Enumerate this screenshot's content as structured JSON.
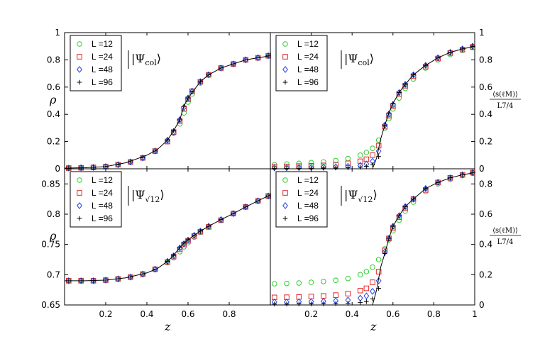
{
  "figure": {
    "x_label": "z",
    "left_y_label": "ρ",
    "right_y_label_numerator": "⟨s(ℓ_M)⟩",
    "right_y_label_denominator": "L^{7/4}",
    "right_y_label_num_display": "⟨s(ℓM)⟩",
    "right_y_label_den_display": "L7/4",
    "legend": [
      "L =12",
      "L =24",
      "L =48",
      "L =96"
    ],
    "marker_shapes": [
      "circle",
      "square",
      "diamond",
      "plus"
    ],
    "colors": {
      "L12": "#2fcc2f",
      "L24": "#e0282b",
      "L48": "#2844e6",
      "L96": "#000000",
      "theory": "#000000"
    }
  },
  "chart_data": [
    {
      "panel": "top-left",
      "type": "scatter",
      "state_label": "|Ψ_col⟩",
      "state_main": "|Ψ",
      "state_sub": "col",
      "state_close": "⟩",
      "xlabel": "",
      "ylabel": "ρ",
      "xlim": [
        0,
        1
      ],
      "ylim": [
        0,
        1
      ],
      "xticks": [],
      "yticks": [
        "0",
        "0.2",
        "0.4",
        "0.6",
        "0.8",
        "1"
      ],
      "series": [
        {
          "name": "L =12",
          "x": [
            0.02,
            0.08,
            0.14,
            0.2,
            0.26,
            0.32,
            0.38,
            0.44,
            0.5,
            0.53,
            0.56,
            0.58,
            0.6,
            0.62,
            0.66,
            0.7,
            0.76,
            0.82,
            0.88,
            0.94,
            0.99
          ],
          "y": [
            0.005,
            0.007,
            0.01,
            0.016,
            0.03,
            0.05,
            0.08,
            0.13,
            0.2,
            0.26,
            0.33,
            0.41,
            0.49,
            0.55,
            0.63,
            0.69,
            0.74,
            0.77,
            0.8,
            0.815,
            0.83
          ]
        },
        {
          "name": "L =24",
          "x": [
            0.02,
            0.08,
            0.14,
            0.2,
            0.26,
            0.32,
            0.38,
            0.44,
            0.5,
            0.53,
            0.56,
            0.58,
            0.6,
            0.62,
            0.66,
            0.7,
            0.76,
            0.82,
            0.88,
            0.94,
            0.99
          ],
          "y": [
            0.005,
            0.007,
            0.01,
            0.016,
            0.03,
            0.05,
            0.08,
            0.13,
            0.2,
            0.27,
            0.35,
            0.44,
            0.51,
            0.57,
            0.64,
            0.69,
            0.74,
            0.77,
            0.8,
            0.815,
            0.83
          ]
        },
        {
          "name": "L =48",
          "x": [
            0.02,
            0.08,
            0.14,
            0.2,
            0.26,
            0.32,
            0.38,
            0.44,
            0.5,
            0.53,
            0.56,
            0.58,
            0.6,
            0.62,
            0.66,
            0.7,
            0.76,
            0.82,
            0.88,
            0.94,
            0.99
          ],
          "y": [
            0.005,
            0.007,
            0.01,
            0.016,
            0.03,
            0.05,
            0.08,
            0.13,
            0.21,
            0.27,
            0.36,
            0.45,
            0.52,
            0.57,
            0.64,
            0.69,
            0.74,
            0.77,
            0.8,
            0.815,
            0.83
          ]
        },
        {
          "name": "L =96",
          "x": [
            0.02,
            0.08,
            0.14,
            0.2,
            0.26,
            0.32,
            0.38,
            0.44,
            0.5,
            0.53,
            0.56,
            0.58,
            0.6,
            0.62,
            0.66,
            0.7,
            0.76,
            0.82,
            0.88,
            0.94,
            0.99
          ],
          "y": [
            0.005,
            0.007,
            0.01,
            0.016,
            0.03,
            0.05,
            0.08,
            0.13,
            0.21,
            0.28,
            0.36,
            0.46,
            0.52,
            0.57,
            0.64,
            0.69,
            0.74,
            0.77,
            0.8,
            0.815,
            0.83
          ]
        }
      ],
      "theory": {
        "x": [
          0,
          0.1,
          0.2,
          0.3,
          0.4,
          0.45,
          0.5,
          0.53,
          0.56,
          0.58,
          0.6,
          0.63,
          0.66,
          0.7,
          0.76,
          0.82,
          0.88,
          0.94,
          1.0
        ],
        "y": [
          0.005,
          0.008,
          0.016,
          0.045,
          0.1,
          0.14,
          0.21,
          0.28,
          0.36,
          0.46,
          0.52,
          0.58,
          0.64,
          0.69,
          0.74,
          0.77,
          0.8,
          0.815,
          0.83
        ]
      }
    },
    {
      "panel": "top-right",
      "type": "scatter",
      "state_label": "|Ψ_col⟩",
      "state_main": "|Ψ",
      "state_sub": "col",
      "state_close": "⟩",
      "xlabel": "",
      "ylabel": "⟨s(ℓ_M)⟩ / L^{7/4}",
      "xlim": [
        0,
        1
      ],
      "ylim": [
        0,
        1
      ],
      "xticks": [],
      "yticks": [
        "0",
        "0.2",
        "0.4",
        "0.6",
        "0.8",
        "1"
      ],
      "series": [
        {
          "name": "L =12",
          "x": [
            0.02,
            0.08,
            0.14,
            0.2,
            0.26,
            0.32,
            0.38,
            0.44,
            0.47,
            0.5,
            0.53,
            0.56,
            0.58,
            0.6,
            0.63,
            0.66,
            0.7,
            0.76,
            0.82,
            0.88,
            0.94,
            0.99
          ],
          "y": [
            0.03,
            0.035,
            0.04,
            0.045,
            0.05,
            0.06,
            0.075,
            0.1,
            0.12,
            0.15,
            0.21,
            0.3,
            0.37,
            0.44,
            0.52,
            0.59,
            0.66,
            0.74,
            0.8,
            0.84,
            0.87,
            0.89
          ]
        },
        {
          "name": "L =24",
          "x": [
            0.02,
            0.08,
            0.14,
            0.2,
            0.26,
            0.32,
            0.38,
            0.44,
            0.47,
            0.5,
            0.53,
            0.56,
            0.58,
            0.6,
            0.63,
            0.66,
            0.7,
            0.76,
            0.82,
            0.88,
            0.94,
            0.99
          ],
          "y": [
            0.015,
            0.017,
            0.02,
            0.022,
            0.025,
            0.03,
            0.04,
            0.055,
            0.07,
            0.1,
            0.17,
            0.31,
            0.39,
            0.46,
            0.55,
            0.61,
            0.68,
            0.75,
            0.81,
            0.85,
            0.875,
            0.895
          ]
        },
        {
          "name": "L =48",
          "x": [
            0.02,
            0.08,
            0.14,
            0.2,
            0.26,
            0.32,
            0.38,
            0.44,
            0.47,
            0.5,
            0.53,
            0.56,
            0.58,
            0.6,
            0.63,
            0.66,
            0.7,
            0.76,
            0.82,
            0.88,
            0.94,
            0.99
          ],
          "y": [
            0.007,
            0.008,
            0.009,
            0.01,
            0.012,
            0.014,
            0.018,
            0.025,
            0.035,
            0.055,
            0.13,
            0.32,
            0.4,
            0.47,
            0.56,
            0.62,
            0.69,
            0.76,
            0.815,
            0.855,
            0.88,
            0.9
          ]
        },
        {
          "name": "L =96",
          "x": [
            0.02,
            0.08,
            0.14,
            0.2,
            0.26,
            0.32,
            0.38,
            0.44,
            0.47,
            0.5,
            0.53,
            0.56,
            0.58,
            0.6,
            0.63,
            0.66,
            0.7,
            0.76,
            0.82,
            0.88,
            0.94,
            0.99
          ],
          "y": [
            0.003,
            0.003,
            0.004,
            0.004,
            0.005,
            0.006,
            0.008,
            0.012,
            0.018,
            0.03,
            0.09,
            0.32,
            0.41,
            0.48,
            0.56,
            0.62,
            0.69,
            0.76,
            0.815,
            0.855,
            0.88,
            0.9
          ]
        }
      ],
      "theory": {
        "x": [
          0.5,
          0.52,
          0.54,
          0.56,
          0.58,
          0.6,
          0.63,
          0.66,
          0.7,
          0.76,
          0.82,
          0.88,
          0.94,
          1.0
        ],
        "y": [
          0.0,
          0.08,
          0.22,
          0.32,
          0.41,
          0.48,
          0.56,
          0.62,
          0.69,
          0.76,
          0.815,
          0.855,
          0.88,
          0.9
        ]
      }
    },
    {
      "panel": "bottom-left",
      "type": "scatter",
      "state_label": "|Ψ_√12⟩",
      "state_main": "|Ψ",
      "state_sub": "√12",
      "state_close": "⟩",
      "xlabel": "z",
      "ylabel": "ρ",
      "xlim": [
        0,
        1
      ],
      "ylim": [
        0.65,
        0.875
      ],
      "xticks": [
        "0.2",
        "0.4",
        "0.6",
        "0.8"
      ],
      "yticks": [
        "0.65",
        "0.7",
        "0.75",
        "0.8",
        "0.85"
      ],
      "series": [
        {
          "name": "L =12",
          "x": [
            0.02,
            0.08,
            0.14,
            0.2,
            0.26,
            0.32,
            0.38,
            0.44,
            0.5,
            0.53,
            0.56,
            0.58,
            0.6,
            0.63,
            0.66,
            0.7,
            0.76,
            0.82,
            0.88,
            0.94,
            0.99
          ],
          "y": [
            0.69,
            0.69,
            0.69,
            0.691,
            0.693,
            0.696,
            0.701,
            0.709,
            0.72,
            0.728,
            0.738,
            0.746,
            0.753,
            0.762,
            0.77,
            0.779,
            0.79,
            0.801,
            0.812,
            0.822,
            0.83
          ]
        },
        {
          "name": "L =24",
          "x": [
            0.02,
            0.08,
            0.14,
            0.2,
            0.26,
            0.32,
            0.38,
            0.44,
            0.5,
            0.53,
            0.56,
            0.58,
            0.6,
            0.63,
            0.66,
            0.7,
            0.76,
            0.82,
            0.88,
            0.94,
            0.99
          ],
          "y": [
            0.69,
            0.69,
            0.69,
            0.691,
            0.693,
            0.696,
            0.701,
            0.709,
            0.721,
            0.73,
            0.742,
            0.75,
            0.756,
            0.764,
            0.771,
            0.779,
            0.79,
            0.801,
            0.812,
            0.822,
            0.83
          ]
        },
        {
          "name": "L =48",
          "x": [
            0.02,
            0.08,
            0.14,
            0.2,
            0.26,
            0.32,
            0.38,
            0.44,
            0.5,
            0.53,
            0.56,
            0.58,
            0.6,
            0.63,
            0.66,
            0.7,
            0.76,
            0.82,
            0.88,
            0.94,
            0.99
          ],
          "y": [
            0.69,
            0.69,
            0.69,
            0.691,
            0.693,
            0.696,
            0.701,
            0.709,
            0.722,
            0.731,
            0.744,
            0.751,
            0.757,
            0.765,
            0.772,
            0.78,
            0.791,
            0.801,
            0.812,
            0.822,
            0.83
          ]
        },
        {
          "name": "L =96",
          "x": [
            0.02,
            0.08,
            0.14,
            0.2,
            0.26,
            0.32,
            0.38,
            0.44,
            0.5,
            0.53,
            0.56,
            0.58,
            0.6,
            0.63,
            0.66,
            0.7,
            0.76,
            0.82,
            0.88,
            0.94,
            0.99
          ],
          "y": [
            0.69,
            0.69,
            0.69,
            0.691,
            0.693,
            0.696,
            0.701,
            0.709,
            0.722,
            0.732,
            0.745,
            0.752,
            0.758,
            0.765,
            0.772,
            0.78,
            0.791,
            0.801,
            0.812,
            0.822,
            0.83
          ]
        }
      ],
      "theory": {
        "x": [
          0,
          0.1,
          0.2,
          0.3,
          0.4,
          0.45,
          0.5,
          0.53,
          0.56,
          0.58,
          0.6,
          0.63,
          0.66,
          0.7,
          0.76,
          0.82,
          0.88,
          0.94,
          1.0
        ],
        "y": [
          0.69,
          0.69,
          0.691,
          0.695,
          0.703,
          0.71,
          0.722,
          0.732,
          0.745,
          0.752,
          0.758,
          0.765,
          0.772,
          0.78,
          0.791,
          0.801,
          0.812,
          0.822,
          0.832
        ]
      }
    },
    {
      "panel": "bottom-right",
      "type": "scatter",
      "state_label": "|Ψ_√12⟩",
      "state_main": "|Ψ",
      "state_sub": "√12",
      "state_close": "⟩",
      "xlabel": "z",
      "ylabel": "⟨s(ℓ_M)⟩ / L^{7/4}",
      "xlim": [
        0,
        1
      ],
      "ylim": [
        0,
        0.9
      ],
      "xticks": [
        "0.2",
        "0.4",
        "0.6",
        "0.8",
        "1"
      ],
      "yticks": [
        "0",
        "0.2",
        "0.4",
        "0.6",
        "0.8"
      ],
      "series": [
        {
          "name": "L =12",
          "x": [
            0.02,
            0.08,
            0.14,
            0.2,
            0.26,
            0.32,
            0.38,
            0.44,
            0.47,
            0.5,
            0.53,
            0.56,
            0.58,
            0.6,
            0.63,
            0.66,
            0.7,
            0.76,
            0.82,
            0.88,
            0.94,
            0.99
          ],
          "y": [
            0.14,
            0.142,
            0.145,
            0.15,
            0.155,
            0.163,
            0.175,
            0.2,
            0.22,
            0.25,
            0.3,
            0.37,
            0.43,
            0.49,
            0.56,
            0.62,
            0.68,
            0.75,
            0.8,
            0.83,
            0.855,
            0.87
          ]
        },
        {
          "name": "L =24",
          "x": [
            0.02,
            0.08,
            0.14,
            0.2,
            0.26,
            0.32,
            0.38,
            0.44,
            0.47,
            0.5,
            0.53,
            0.56,
            0.58,
            0.6,
            0.63,
            0.66,
            0.7,
            0.76,
            0.82,
            0.88,
            0.94,
            0.99
          ],
          "y": [
            0.05,
            0.051,
            0.053,
            0.056,
            0.06,
            0.065,
            0.075,
            0.095,
            0.11,
            0.15,
            0.22,
            0.36,
            0.44,
            0.51,
            0.58,
            0.64,
            0.7,
            0.76,
            0.81,
            0.84,
            0.86,
            0.875
          ]
        },
        {
          "name": "L =48",
          "x": [
            0.02,
            0.08,
            0.14,
            0.2,
            0.26,
            0.32,
            0.38,
            0.44,
            0.47,
            0.5,
            0.53,
            0.56,
            0.58,
            0.6,
            0.63,
            0.66,
            0.7,
            0.76,
            0.82,
            0.88,
            0.94,
            0.99
          ],
          "y": [
            0.02,
            0.02,
            0.021,
            0.022,
            0.024,
            0.027,
            0.032,
            0.045,
            0.06,
            0.09,
            0.16,
            0.35,
            0.44,
            0.52,
            0.59,
            0.65,
            0.7,
            0.77,
            0.81,
            0.84,
            0.86,
            0.875
          ]
        },
        {
          "name": "L =96",
          "x": [
            0.02,
            0.08,
            0.14,
            0.2,
            0.26,
            0.32,
            0.38,
            0.44,
            0.47,
            0.5,
            0.53,
            0.56,
            0.58,
            0.6,
            0.63,
            0.66,
            0.7,
            0.76,
            0.82,
            0.88,
            0.94,
            0.99
          ],
          "y": [
            0.006,
            0.006,
            0.007,
            0.007,
            0.008,
            0.009,
            0.011,
            0.016,
            0.022,
            0.04,
            0.11,
            0.34,
            0.44,
            0.52,
            0.59,
            0.65,
            0.7,
            0.77,
            0.81,
            0.84,
            0.86,
            0.875
          ]
        }
      ],
      "theory": {
        "x": [
          0.5,
          0.52,
          0.54,
          0.56,
          0.58,
          0.6,
          0.63,
          0.66,
          0.7,
          0.76,
          0.82,
          0.88,
          0.94,
          1.0
        ],
        "y": [
          0.0,
          0.1,
          0.25,
          0.34,
          0.44,
          0.52,
          0.59,
          0.65,
          0.7,
          0.77,
          0.81,
          0.84,
          0.86,
          0.875
        ]
      }
    }
  ]
}
